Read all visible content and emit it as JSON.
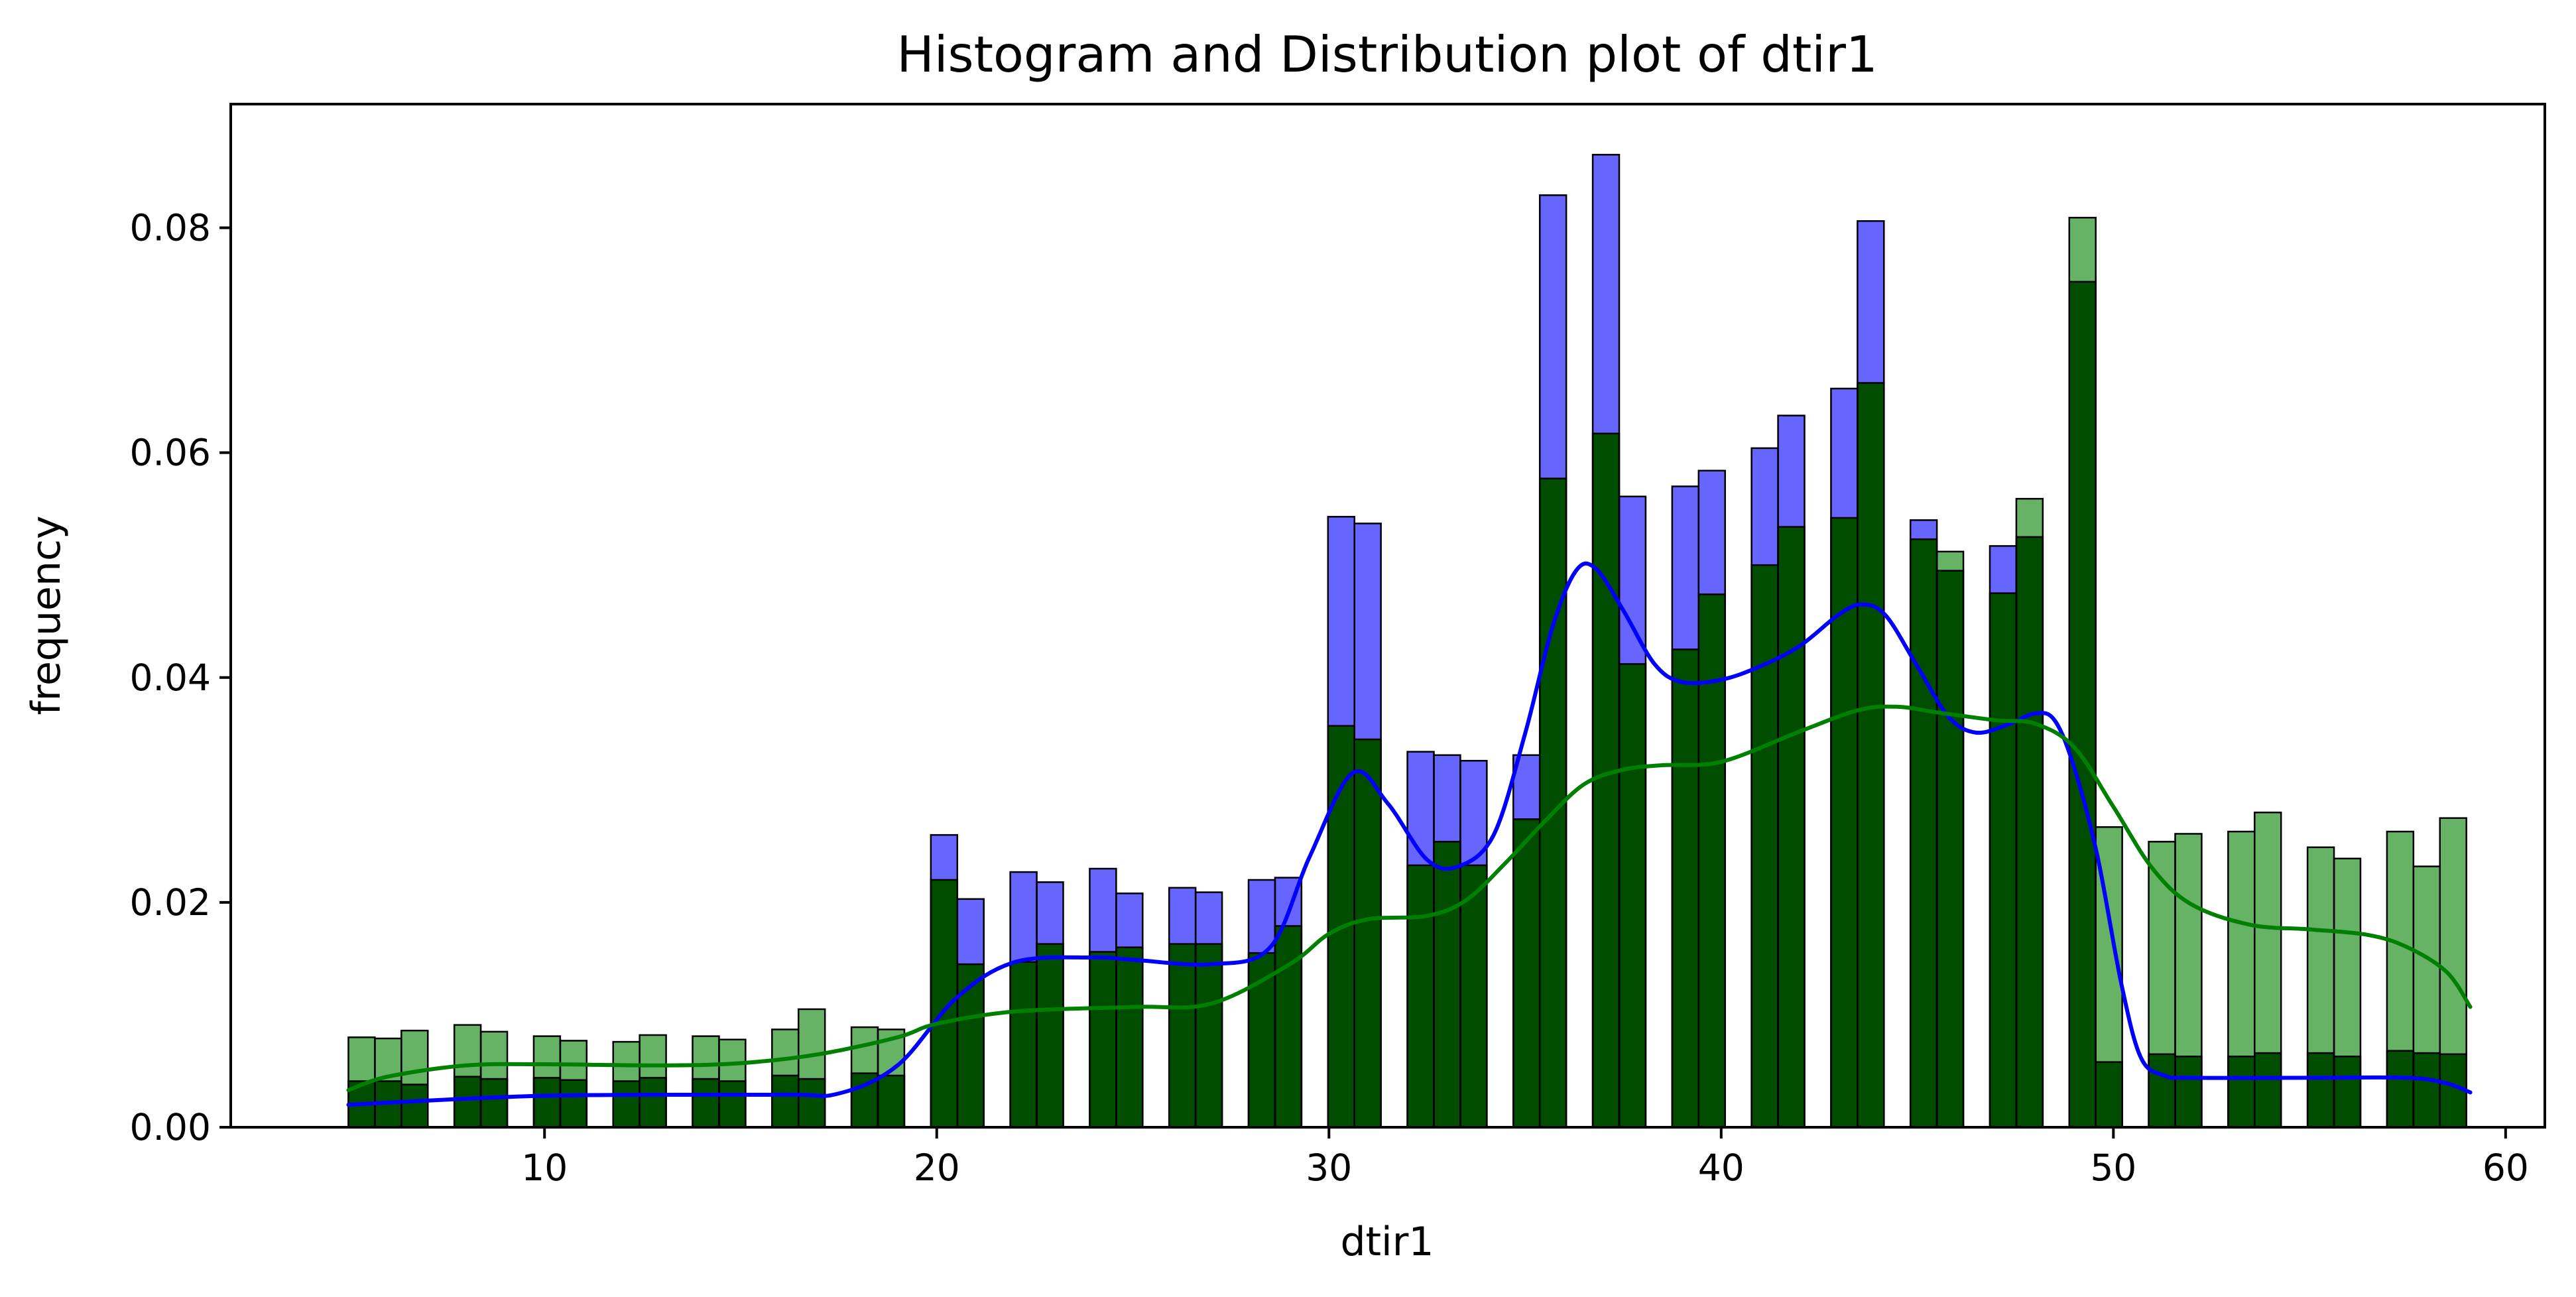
{
  "chart_data": {
    "type": "bar",
    "title": "Histogram and Distribution plot of dtir1",
    "xlabel": "dtir1",
    "ylabel": "frequency",
    "xlim": [
      2,
      61
    ],
    "ylim": [
      0,
      0.091
    ],
    "xticks": [
      {
        "value": 10,
        "label": "10"
      },
      {
        "value": 20,
        "label": "20"
      },
      {
        "value": 30,
        "label": "30"
      },
      {
        "value": 40,
        "label": "40"
      },
      {
        "value": 50,
        "label": "50"
      },
      {
        "value": 60,
        "label": "60"
      }
    ],
    "yticks": [
      {
        "value": 0.0,
        "label": "0.00"
      },
      {
        "value": 0.02,
        "label": "0.02"
      },
      {
        "value": 0.04,
        "label": "0.04"
      },
      {
        "value": 0.06,
        "label": "0.06"
      },
      {
        "value": 0.08,
        "label": "0.08"
      }
    ],
    "grid": false,
    "legend": "none",
    "bin_width": 0.675,
    "x": [
      5.0,
      5.675,
      6.35,
      7.7,
      8.375,
      9.725,
      10.4,
      11.75,
      12.425,
      13.775,
      14.45,
      15.8,
      16.475,
      17.825,
      18.5,
      19.85,
      20.525,
      21.875,
      22.55,
      23.9,
      24.575,
      25.925,
      26.6,
      27.95,
      28.625,
      29.975,
      30.65,
      32.0,
      32.675,
      33.35,
      34.7,
      35.375,
      36.725,
      37.4,
      38.75,
      39.425,
      40.775,
      41.45,
      42.8,
      43.475,
      44.825,
      45.5,
      46.85,
      47.525,
      48.875,
      49.55,
      50.9,
      51.575,
      52.925,
      53.6,
      54.95,
      55.625,
      56.975,
      57.65,
      58.325
    ],
    "series": [
      {
        "color": "#0000ff",
        "kde_color": "#0000ff",
        "values": [
          0.0041,
          0.0041,
          0.0038,
          0.0045,
          0.0043,
          0.0044,
          0.0042,
          0.0041,
          0.0044,
          0.0043,
          0.0041,
          0.0046,
          0.0043,
          0.0048,
          0.0046,
          0.026,
          0.0203,
          0.0227,
          0.0218,
          0.023,
          0.0208,
          0.0213,
          0.0209,
          0.022,
          0.0222,
          0.0543,
          0.0537,
          0.0334,
          0.0331,
          0.0326,
          0.0331,
          0.0829,
          0.0865,
          0.0561,
          0.057,
          0.0584,
          0.0604,
          0.0633,
          0.0657,
          0.0806,
          0.054,
          0.0495,
          0.0517,
          0.0525,
          0.0752,
          0.0058,
          0.0065,
          0.0063,
          0.0063,
          0.0066,
          0.0066,
          0.0063,
          0.0068,
          0.0066,
          0.0065
        ],
        "kde": {
          "x": [
            5,
            10,
            16,
            17.5,
            19,
            20.5,
            22,
            24,
            25,
            27,
            28.5,
            29.5,
            30.6,
            31.5,
            32.5,
            33.3,
            34.2,
            35,
            35.7,
            36.3,
            36.8,
            37.5,
            38.3,
            39,
            40,
            41,
            42,
            43,
            43.6,
            44.2,
            45,
            45.8,
            46.5,
            47.3,
            48,
            48.5,
            49,
            49.6,
            50.2,
            50.7,
            51.3,
            52,
            55,
            57.5,
            58.5,
            59.1
          ],
          "y": [
            0.002,
            0.0028,
            0.0029,
            0.003,
            0.0055,
            0.0115,
            0.0147,
            0.0151,
            0.0149,
            0.0145,
            0.016,
            0.024,
            0.0315,
            0.0288,
            0.0238,
            0.0232,
            0.026,
            0.035,
            0.0445,
            0.0495,
            0.0497,
            0.046,
            0.0412,
            0.0396,
            0.0398,
            0.041,
            0.0428,
            0.0456,
            0.0465,
            0.0455,
            0.041,
            0.0365,
            0.0351,
            0.0358,
            0.0368,
            0.0362,
            0.032,
            0.024,
            0.0128,
            0.0062,
            0.0046,
            0.0044,
            0.0044,
            0.0044,
            0.0039,
            0.0031
          ]
        }
      },
      {
        "color": "#008000",
        "kde_color": "#008000",
        "values": [
          0.008,
          0.0079,
          0.0086,
          0.0091,
          0.0085,
          0.0081,
          0.0077,
          0.0076,
          0.0082,
          0.0081,
          0.0078,
          0.0087,
          0.0105,
          0.0089,
          0.0087,
          0.022,
          0.0145,
          0.0147,
          0.0163,
          0.0156,
          0.016,
          0.0163,
          0.0163,
          0.0155,
          0.0179,
          0.0357,
          0.0345,
          0.0233,
          0.0254,
          0.0233,
          0.0274,
          0.0577,
          0.0617,
          0.0412,
          0.0425,
          0.0474,
          0.05,
          0.0534,
          0.0542,
          0.0662,
          0.0523,
          0.0512,
          0.0475,
          0.0559,
          0.0809,
          0.0267,
          0.0254,
          0.0261,
          0.0263,
          0.028,
          0.0249,
          0.0239,
          0.0263,
          0.0232,
          0.0275
        ],
        "kde": {
          "x": [
            5,
            6,
            8,
            10,
            13,
            15,
            17,
            19,
            20,
            22,
            25,
            27,
            29,
            30,
            31,
            32.5,
            33.5,
            34.5,
            35.5,
            36.5,
            37.5,
            38.5,
            40,
            42,
            43.5,
            44.5,
            45.5,
            47,
            48,
            49,
            50,
            51,
            52,
            53.5,
            55,
            56.5,
            57.5,
            58.5,
            59.1
          ],
          "y": [
            0.0033,
            0.0045,
            0.0055,
            0.0056,
            0.0055,
            0.0057,
            0.0065,
            0.008,
            0.0092,
            0.0103,
            0.0107,
            0.011,
            0.0145,
            0.0172,
            0.0185,
            0.0188,
            0.0202,
            0.0235,
            0.0272,
            0.0305,
            0.0318,
            0.0322,
            0.0325,
            0.0352,
            0.0371,
            0.0374,
            0.0369,
            0.0362,
            0.0359,
            0.0338,
            0.0285,
            0.023,
            0.0198,
            0.018,
            0.0176,
            0.0171,
            0.016,
            0.0138,
            0.0107
          ]
        }
      }
    ]
  }
}
